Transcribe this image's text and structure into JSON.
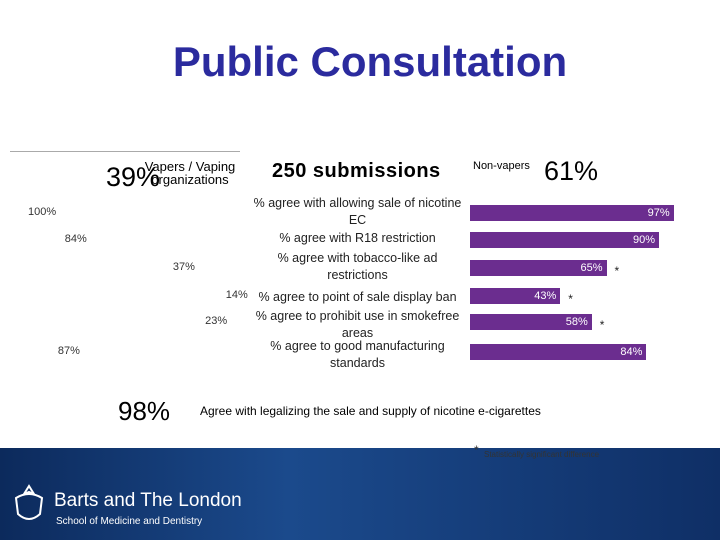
{
  "title": "Public Consultation",
  "chart_data": {
    "type": "butterfly-bar",
    "left_header": {
      "value_label": "39%",
      "label": "Vapers / Vaping organizations"
    },
    "center_header": "250 submissions",
    "right_header": {
      "label": "Non-vapers",
      "value_label": "61%"
    },
    "categories": [
      "% agree with allowing sale of nicotine EC",
      "% agree with R18 restriction",
      "% agree with tobacco-like ad restrictions",
      "% agree to point of sale display ban",
      "% agree to prohibit use in smokefree areas",
      "% agree to good manufacturing standards"
    ],
    "series": [
      {
        "name": "Vapers / Vaping organizations",
        "color": "#ffffff",
        "values": [
          100,
          84,
          37,
          14,
          23,
          87
        ],
        "value_labels": [
          "100%",
          "84%",
          "37%",
          "14%",
          "23%",
          "87%"
        ]
      },
      {
        "name": "Non-vapers",
        "color": "#6b2d8f",
        "values": [
          97,
          90,
          65,
          43,
          58,
          84
        ],
        "value_labels": [
          "97%",
          "90%",
          "65%",
          "43%",
          "58%",
          "84%"
        ]
      }
    ],
    "xlim": [
      0,
      100
    ],
    "significance_marks": [
      null,
      null,
      "*",
      "*",
      "*",
      null
    ],
    "summary": {
      "value_label": "98%",
      "label": "Agree with legalizing the sale and supply of nicotine e-cigarettes"
    },
    "footnote": {
      "symbol": "*",
      "text": "Statistically significant difference"
    }
  },
  "footer": {
    "institution": "Barts and The London",
    "school": "School of Medicine and Dentistry"
  }
}
